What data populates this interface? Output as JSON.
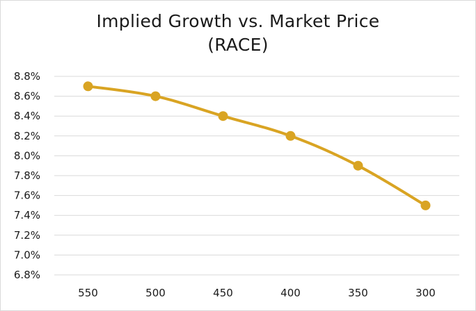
{
  "chart_data": {
    "type": "line",
    "title": "Implied Growth vs. Market Price",
    "subtitle": "(RACE)",
    "xlabel": "",
    "ylabel": "",
    "categories": [
      "550",
      "500",
      "450",
      "400",
      "350",
      "300"
    ],
    "series": [
      {
        "name": "Implied Growth",
        "values": [
          8.7,
          8.6,
          8.4,
          8.2,
          7.9,
          7.5
        ],
        "color": "#d9a423"
      }
    ],
    "ylim": [
      6.8,
      8.8
    ],
    "ytick_step": 0.2,
    "ytick_labels": [
      "6.8%",
      "7.0%",
      "7.2%",
      "7.4%",
      "7.6%",
      "7.8%",
      "8.0%",
      "8.2%",
      "8.4%",
      "8.6%",
      "8.8%"
    ],
    "grid": true,
    "legend": "none"
  }
}
